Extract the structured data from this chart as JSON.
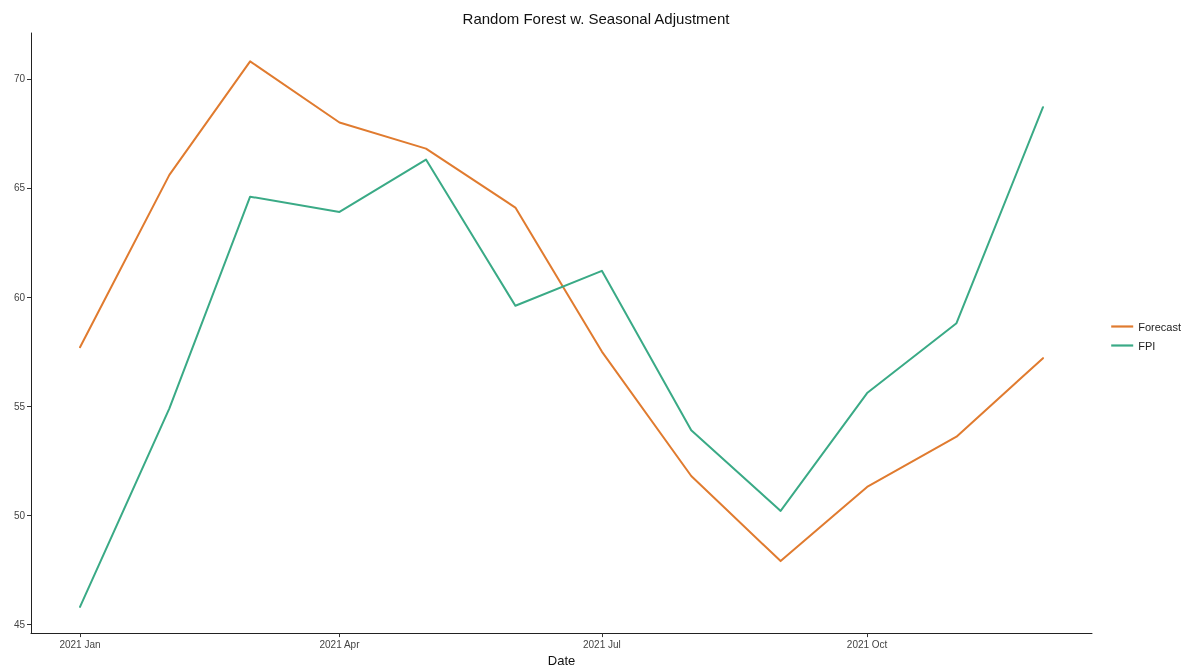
{
  "chart_data": {
    "type": "line",
    "title": "Random Forest w. Seasonal Adjustment",
    "xlabel": "Date",
    "x": [
      "2021-01",
      "2021-02",
      "2021-03",
      "2021-04",
      "2021-05",
      "2021-06",
      "2021-07",
      "2021-08",
      "2021-09",
      "2021-10",
      "2021-11",
      "2021-12"
    ],
    "series": [
      {
        "name": "Forecast",
        "color": "#e07b2f",
        "values": [
          57.7,
          65.6,
          70.8,
          68.0,
          66.8,
          64.1,
          57.5,
          51.8,
          47.9,
          51.3,
          53.6,
          57.2
        ]
      },
      {
        "name": "FPI",
        "color": "#3aaa86",
        "values": [
          45.8,
          54.9,
          64.6,
          63.9,
          66.3,
          59.6,
          61.2,
          53.9,
          50.2,
          55.6,
          58.8,
          68.7
        ]
      }
    ],
    "xlim": [
      "2020-12-15",
      "2021-12-18"
    ],
    "xticks": [
      {
        "value": "2021-01",
        "label": "2021 Jan"
      },
      {
        "value": "2021-04",
        "label": "2021 Apr"
      },
      {
        "value": "2021-07",
        "label": "2021 Jul"
      },
      {
        "value": "2021-10",
        "label": "2021 Oct"
      }
    ],
    "ylim": [
      44.6,
      72.1
    ],
    "yticks": [
      45,
      50,
      55,
      60,
      65,
      70
    ],
    "grid": false,
    "legend": "right",
    "marker": "none",
    "line_style": "solid"
  }
}
